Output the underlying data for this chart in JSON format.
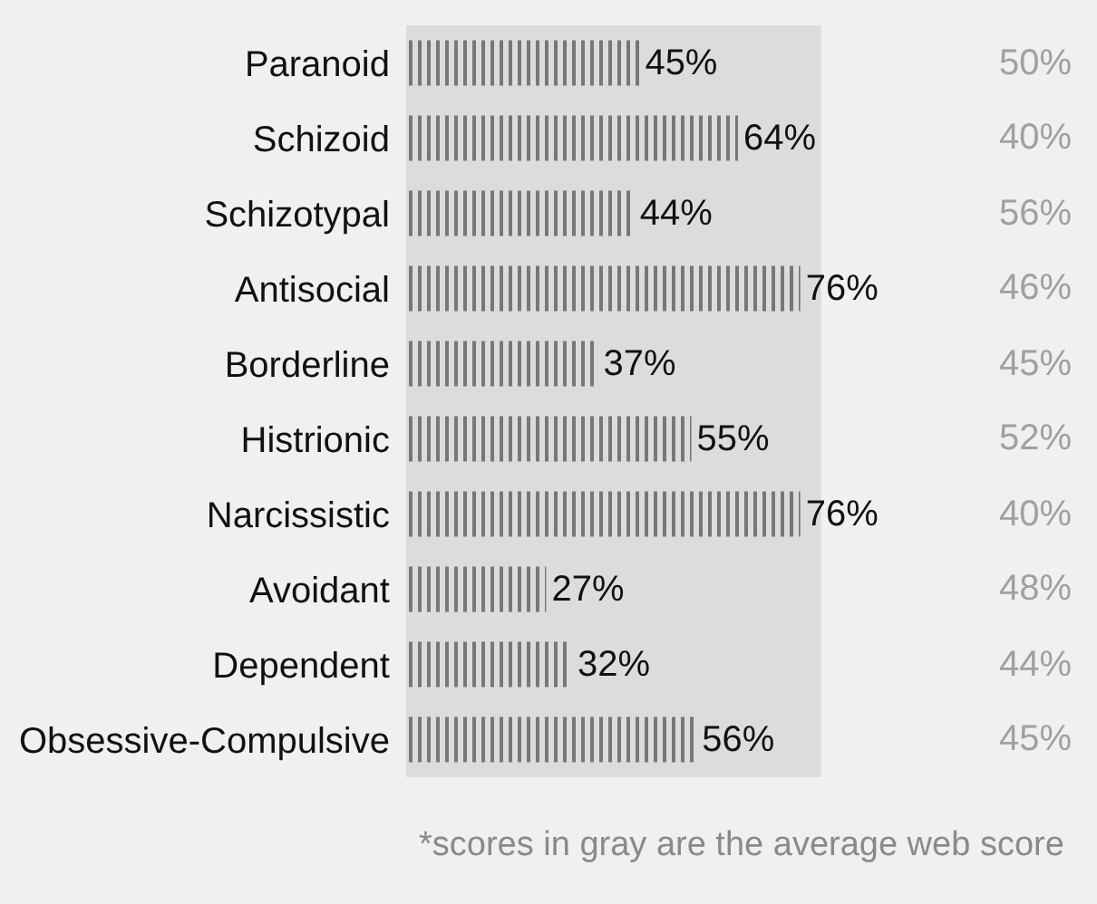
{
  "chart_data": {
    "type": "bar",
    "orientation": "horizontal",
    "categories": [
      "Paranoid",
      "Schizoid",
      "Schizotypal",
      "Antisocial",
      "Borderline",
      "Histrionic",
      "Narcissistic",
      "Avoidant",
      "Dependent",
      "Obsessive-Compulsive"
    ],
    "series": [
      {
        "color": "#111111",
        "values": [
          45,
          64,
          44,
          76,
          37,
          55,
          76,
          27,
          32,
          56
        ],
        "value_labels": [
          "45%",
          "64%",
          "44%",
          "76%",
          "37%",
          "55%",
          "76%",
          "27%",
          "32%",
          "56%"
        ]
      }
    ],
    "tick_labels": "y",
    "annotations": [
      "50%",
      "40%",
      "56%",
      "46%",
      "45%",
      "52%",
      "40%",
      "48%",
      "44%",
      "45%",
      "*scores in gray are the average web score"
    ]
  }
}
